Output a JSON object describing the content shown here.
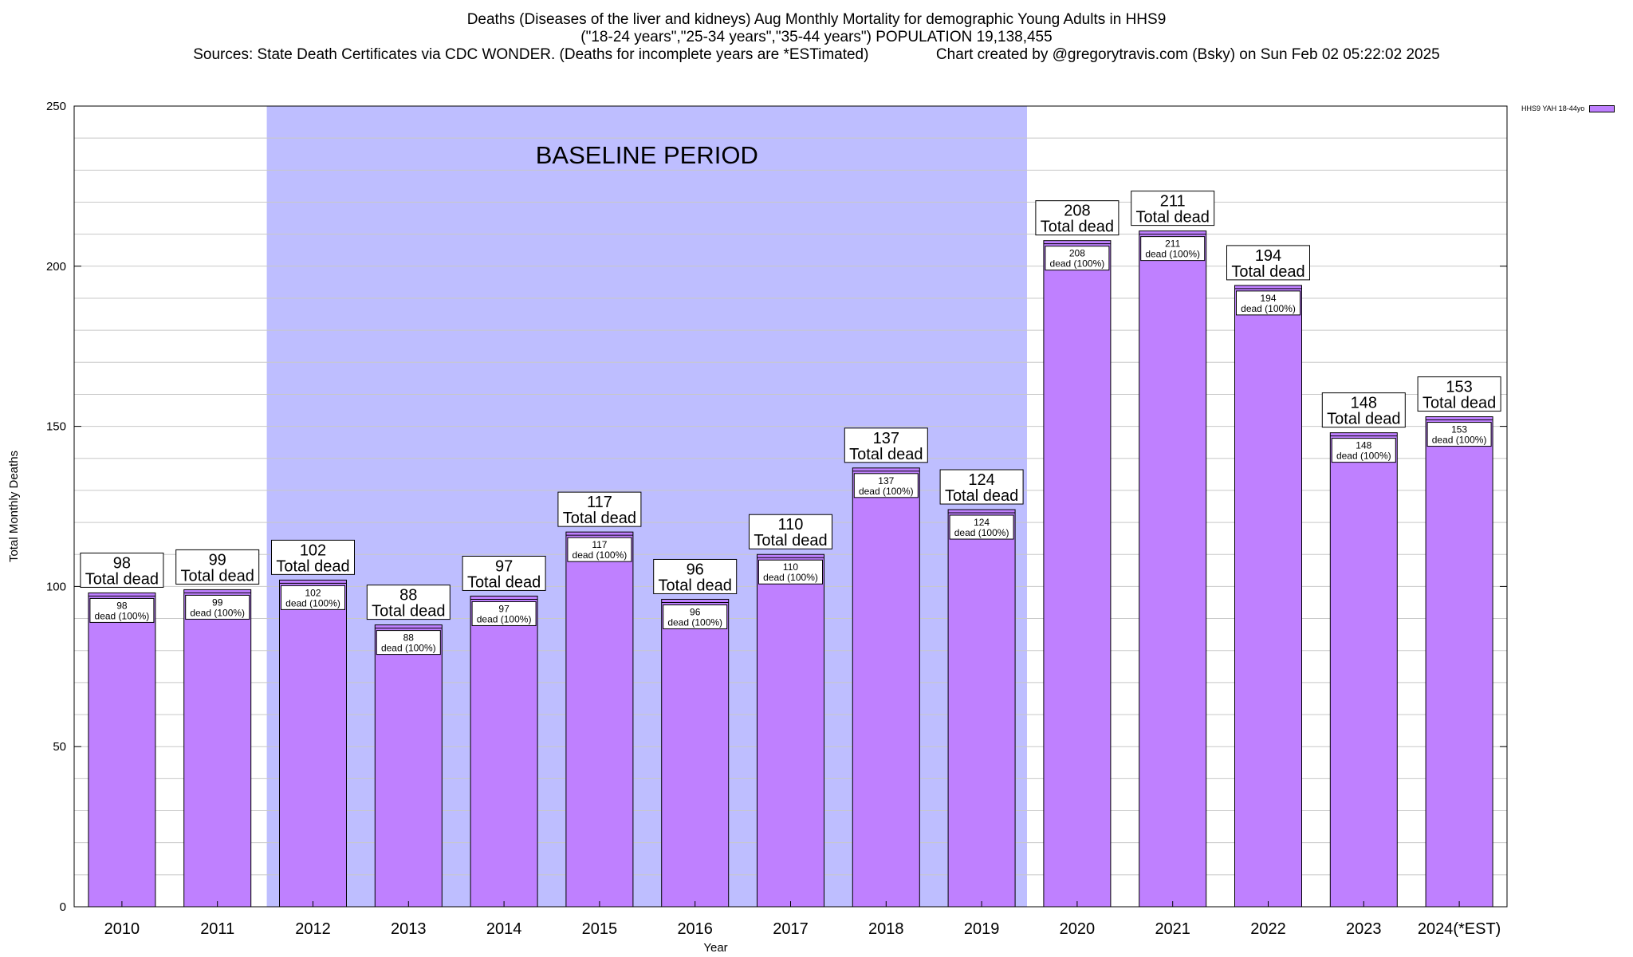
{
  "title_lines": [
    "Deaths (Diseases of the liver and kidneys) Aug Monthly Mortality for demographic Young Adults in HHS9",
    "(\"18-24 years\",\"25-34 years\",\"35-44 years\") POPULATION 19,138,455",
    "Sources: State Death Certificates via CDC WONDER. (Deaths for incomplete years are *ESTimated)                Chart created by @gregorytravis.com (Bsky) on Sun Feb 02 05:22:02 2025"
  ],
  "legend": {
    "label": "HHS9 YAH 18-44yo"
  },
  "colors": {
    "bar": "#bf80ff",
    "baseline_band": "#bebeff",
    "grid": "#c8c8c8"
  },
  "chart_data": {
    "type": "bar",
    "xlabel": "Year",
    "ylabel": "Total Monthly Deaths",
    "ylim": [
      0,
      250
    ],
    "yticks": [
      0,
      50,
      100,
      150,
      200,
      250
    ],
    "grid": true,
    "legend_position": "top-right",
    "categories": [
      "2010",
      "2011",
      "2012",
      "2013",
      "2014",
      "2015",
      "2016",
      "2017",
      "2018",
      "2019",
      "2020",
      "2021",
      "2022",
      "2023",
      "2024(*EST)"
    ],
    "series": [
      {
        "name": "HHS9 YAH 18-44yo",
        "values": [
          98,
          99,
          102,
          88,
          97,
          117,
          96,
          110,
          137,
          124,
          208,
          211,
          194,
          148,
          153
        ]
      }
    ],
    "total_label_suffix": "Total dead",
    "inner_label_suffix": "dead (100%)",
    "baseline_period": {
      "label": "BASELINE PERIOD",
      "start": "2012",
      "end": "2019"
    }
  }
}
